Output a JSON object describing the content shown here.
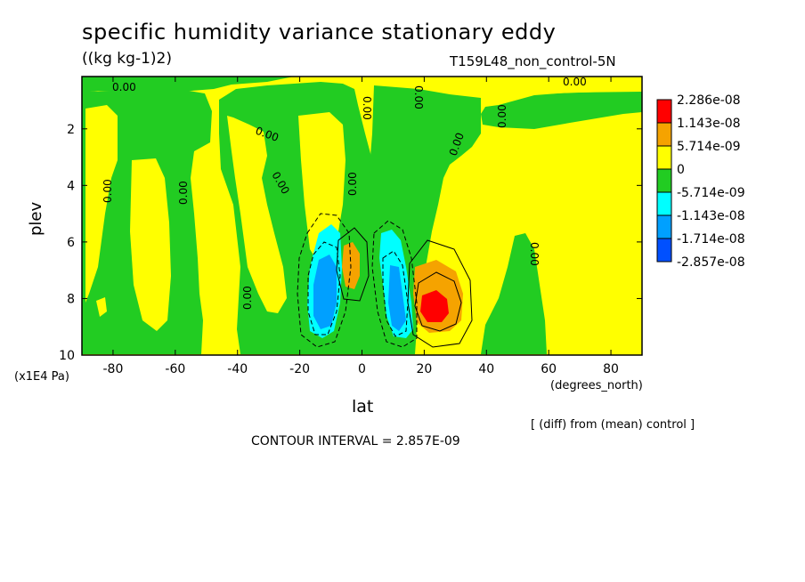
{
  "chart_data": {
    "type": "contour",
    "title": "specific humidity variance stationary eddy",
    "units": "((kg kg-1)2)",
    "run_label": "T159L48_non_control-5N",
    "xlabel": "lat",
    "x_units": "(degrees_north)",
    "ylabel": "plev",
    "y_units": "(x1E4 Pa)",
    "diff_note": "[ (diff) from (mean) control ]",
    "contour_interval_label": "CONTOUR INTERVAL = 2.857E-09",
    "xlim": [
      -90,
      90
    ],
    "ylim": [
      10,
      0.15
    ],
    "x_ticks": [
      "-80",
      "-60",
      "-40",
      "-20",
      "0",
      "20",
      "40",
      "60",
      "80"
    ],
    "x_tick_values": [
      -80,
      -60,
      -40,
      -20,
      0,
      20,
      40,
      60,
      80
    ],
    "y_ticks": [
      "2",
      "4",
      "6",
      "8",
      "10"
    ],
    "y_tick_values": [
      2,
      4,
      6,
      8,
      10
    ],
    "contour_labels": [
      "0.00",
      "0.00",
      "0.00",
      "0.00",
      "0.00",
      "0.00",
      "0.00",
      "0.00",
      "0.00",
      "0.00",
      "0.00",
      "0.00",
      "0.00"
    ],
    "legend": {
      "labels": [
        "2.286e-08",
        "1.143e-08",
        "5.714e-09",
        "0",
        "-5.714e-09",
        "-1.143e-08",
        "-1.714e-08",
        "-2.857e-08"
      ],
      "colors": [
        "#ff0000",
        "#f5a300",
        "#ffff00",
        "#22cc22",
        "#00ffff",
        "#00a0ff",
        "#0050ff"
      ]
    },
    "fill_colors": {
      "zero": "#ffff00",
      "neg_small": "#22cc22",
      "neg_mid": "#00ffff",
      "neg_large": "#00a0ff",
      "pos_small": "#f5a300",
      "pos_large": "#ff0000"
    }
  }
}
